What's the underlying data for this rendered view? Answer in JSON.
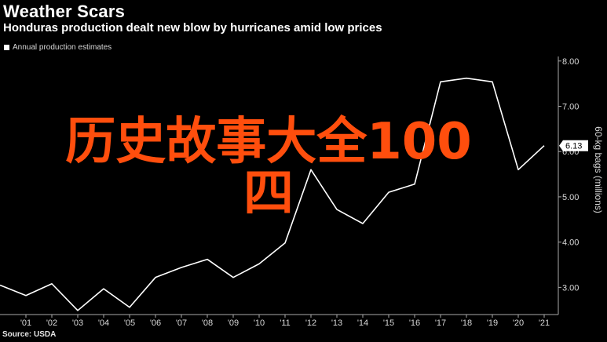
{
  "title": "Weather Scars",
  "subtitle": "Honduras production dealt new blow by hurricanes amid low prices",
  "legend": {
    "label": "Annual production estimates",
    "color": "#ffffff"
  },
  "source": "Source: USDA",
  "watermark": {
    "line1": "历史故事大全100",
    "line2": "四",
    "color": "#ff4e0d"
  },
  "colors": {
    "background": "#000000",
    "line": "#ffffff",
    "axis": "#aaaaaa",
    "text": "#d9d9d9"
  },
  "chart_data": {
    "type": "line",
    "series": [
      {
        "name": "Annual production estimates",
        "x": [
          2000,
          2001,
          2002,
          2003,
          2004,
          2005,
          2006,
          2007,
          2008,
          2009,
          2010,
          2011,
          2012,
          2013,
          2014,
          2015,
          2016,
          2017,
          2018,
          2019,
          2020,
          2021
        ],
        "values": [
          3.05,
          2.82,
          3.08,
          2.49,
          2.97,
          2.56,
          3.22,
          3.44,
          3.62,
          3.22,
          3.52,
          3.98,
          5.6,
          4.72,
          4.41,
          5.1,
          5.28,
          7.54,
          7.62,
          7.54,
          5.6,
          6.13
        ]
      }
    ],
    "x_ticks": [
      "'01",
      "'02",
      "'03",
      "'04",
      "'05",
      "'06",
      "'07",
      "'08",
      "'09",
      "'10",
      "'11",
      "'12",
      "'13",
      "'14",
      "'15",
      "'16",
      "'17",
      "'18",
      "'19",
      "'20",
      "'21"
    ],
    "y_ticks": [
      "3.00",
      "4.00",
      "5.00",
      "6.00",
      "7.00",
      "8.00"
    ],
    "y_tick_values": [
      3,
      4,
      5,
      6,
      7,
      8
    ],
    "ylabel": "60-kg bags (millions)",
    "last_value_label": "6.13",
    "ylim": [
      2.4,
      8.1
    ],
    "xlim": [
      2000,
      2021
    ],
    "y_axis_position": "right",
    "grid": false,
    "legend_position": "top-left"
  }
}
